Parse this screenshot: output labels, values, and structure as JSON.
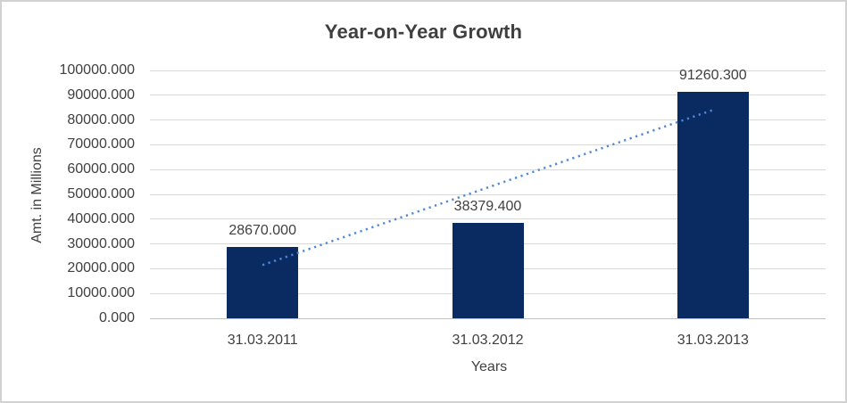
{
  "window": {
    "background": "#ffffff",
    "border_color": "#d2d2d2"
  },
  "chart_data": {
    "type": "bar",
    "title": "Year-on-Year Growth",
    "xlabel": "Years",
    "ylabel": "Amt. in Millions",
    "categories": [
      "31.03.2011",
      "31.03.2012",
      "31.03.2013"
    ],
    "values": [
      28670.0,
      38379.4,
      91260.3
    ],
    "data_labels": [
      "28670.000",
      "38379.400",
      "91260.300"
    ],
    "ylim": [
      0,
      100000
    ],
    "ytick_values": [
      0,
      10000,
      20000,
      30000,
      40000,
      50000,
      60000,
      70000,
      80000,
      90000,
      100000
    ],
    "ytick_labels": [
      "0.000",
      "10000.000",
      "20000.000",
      "30000.000",
      "40000.000",
      "50000.000",
      "60000.000",
      "70000.000",
      "80000.000",
      "90000.000",
      "100000.000"
    ],
    "grid": true,
    "legend": false,
    "bar_color": "#0a2a62",
    "gridline_color": "#d9d9d9",
    "axis_line_color": "#c0c0c0",
    "text_color": "#404040",
    "title_color": "#3f3f3f",
    "trendline": {
      "type": "linear",
      "style": "dotted",
      "color": "#4e89d6",
      "start_value": 21475,
      "end_value": 84065
    }
  }
}
